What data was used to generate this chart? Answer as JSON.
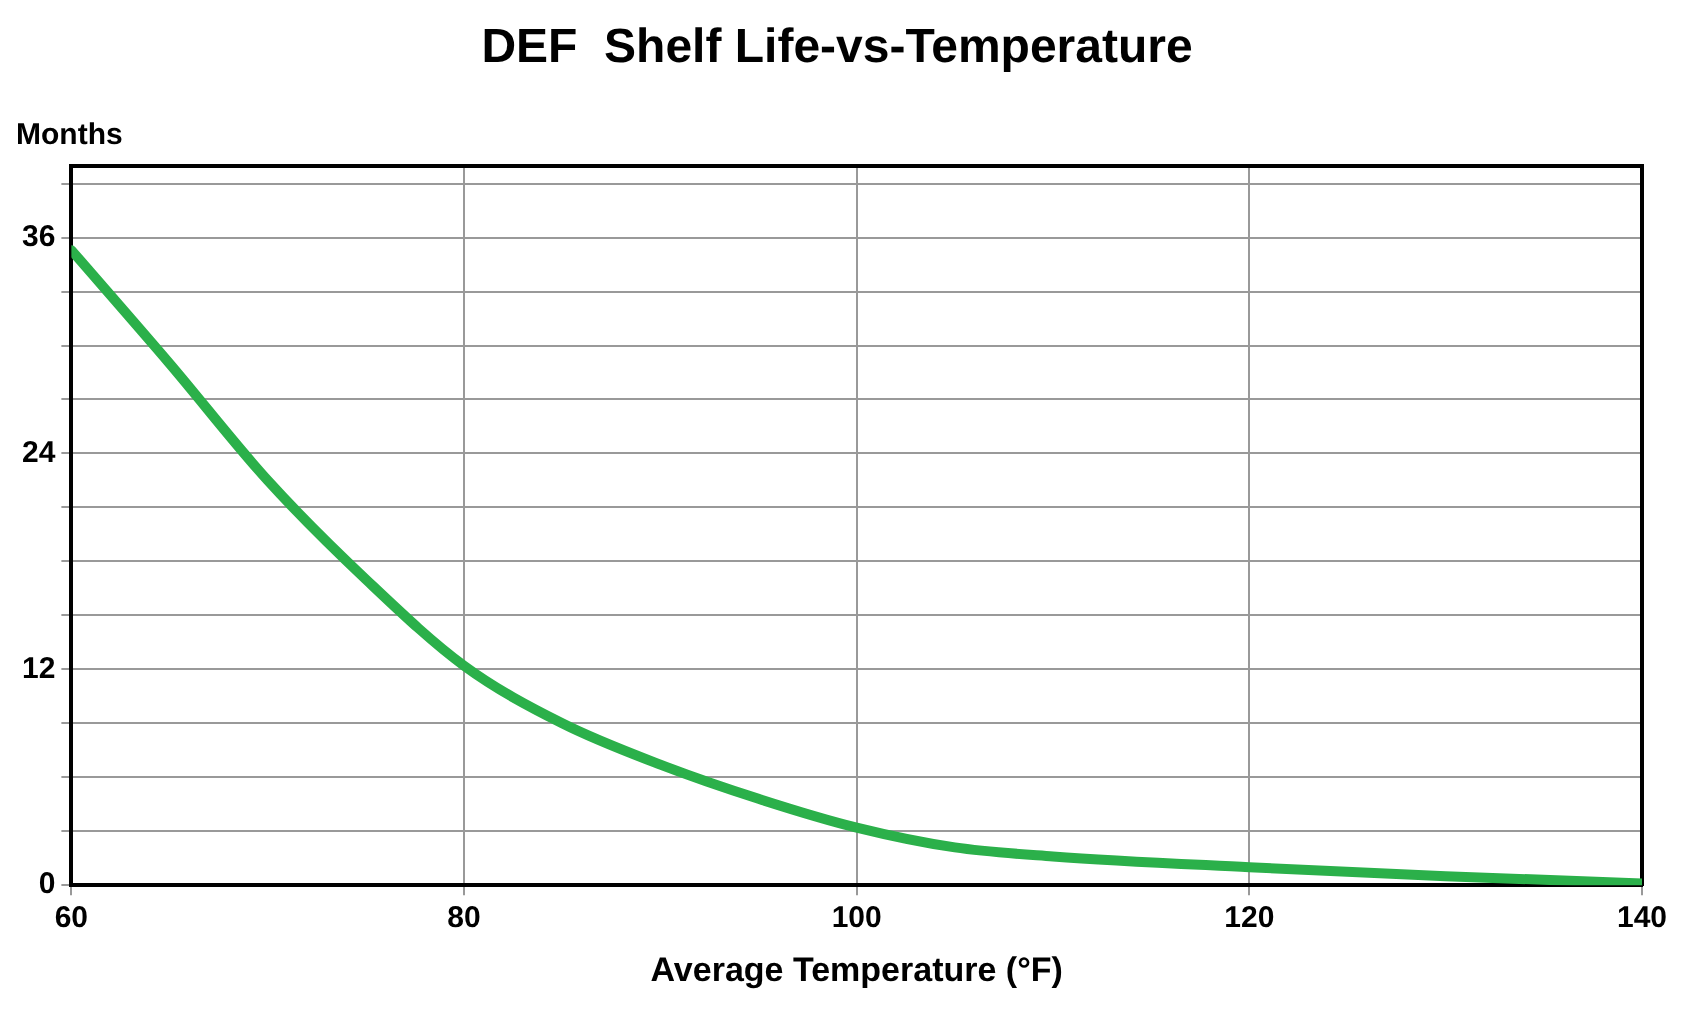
{
  "chart_data": {
    "type": "line",
    "title": "DEF  Shelf Life-vs-Temperature",
    "xlabel": "Average Temperature (°F)",
    "ylabel": "Months",
    "series": [
      {
        "color": "#2bb04a",
        "x": [
          60,
          65,
          70,
          75,
          80,
          85,
          90,
          95,
          100,
          105,
          110,
          120,
          130,
          140
        ],
        "values": [
          35.3,
          29,
          22.5,
          17,
          12.2,
          9,
          6.7,
          4.8,
          3.2,
          2.1,
          1.6,
          1.0,
          0.5,
          0.1
        ]
      }
    ],
    "xlim": [
      60,
      140
    ],
    "xticks": [
      60,
      80,
      100,
      120,
      140
    ],
    "ylim": [
      0,
      40
    ],
    "yticks": [
      0,
      {
        "value": 3,
        "label": null
      },
      {
        "value": 6,
        "label": null
      },
      {
        "value": 9,
        "label": null
      },
      12,
      {
        "value": 15,
        "label": null
      },
      {
        "value": 18,
        "label": null
      },
      {
        "value": 21,
        "label": null
      },
      24,
      {
        "value": 27,
        "label": null
      },
      {
        "value": 30,
        "label": null
      },
      {
        "value": 33,
        "label": null
      },
      36,
      {
        "value": 39,
        "label": null
      }
    ],
    "grid": true,
    "legend": false,
    "marker": "none",
    "line_style": "solid"
  }
}
